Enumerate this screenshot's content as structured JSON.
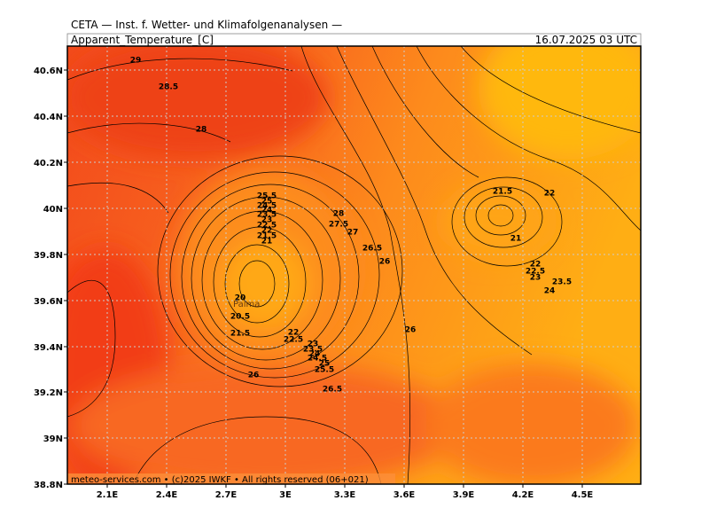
{
  "header": {
    "source": "CETA — Inst. f. Wetter- und Klimafolgenanalysen —",
    "variable": "Apparent_Temperature_[C]",
    "valid_time": "16.07.2025 03 UTC"
  },
  "map": {
    "lat_ticks": [
      "40.6N",
      "40.4N",
      "40.2N",
      "40N",
      "39.8N",
      "39.6N",
      "39.4N",
      "39.2N",
      "39N",
      "38.8N"
    ],
    "lon_ticks": [
      "2.1E",
      "2.4E",
      "2.7E",
      "3E",
      "3.3E",
      "3.6E",
      "3.9E",
      "4.2E",
      "4.5E"
    ],
    "place": "Palma",
    "contour_labels": [
      "29",
      "28.5",
      "28",
      "25.5",
      "25",
      "24.5",
      "24",
      "23.5",
      "23",
      "22.5",
      "22",
      "21.5",
      "21",
      "20",
      "20.5",
      "21.5",
      "22",
      "22.5",
      "23",
      "23.5",
      "24",
      "24.5",
      "25",
      "25.5",
      "26",
      "26.5",
      "26",
      "26",
      "26.5",
      "27",
      "27.5",
      "28",
      "21.5",
      "22",
      "21",
      "22",
      "22.5",
      "23",
      "23.5",
      "24"
    ]
  },
  "footer": "meteo-services.com • (c)2025 IWKF • All rights reserved (06+021)"
}
